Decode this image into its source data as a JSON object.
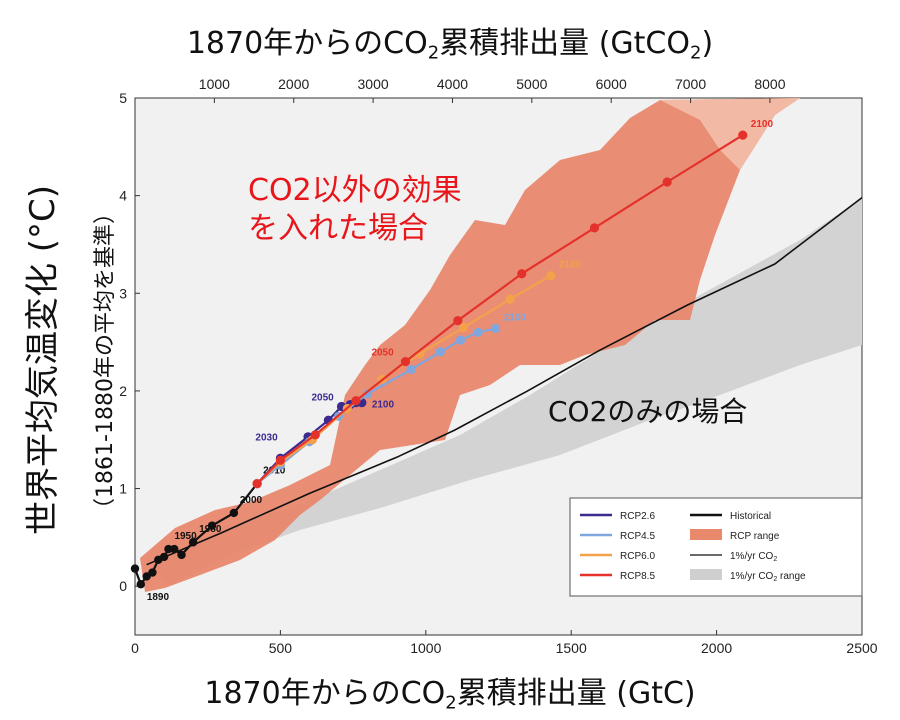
{
  "titles": {
    "top_axis_main": "1870年からのCO",
    "top_axis_sub": "2",
    "top_axis_tail": "累積排出量 (GtCO",
    "top_axis_sub2": "2",
    "top_axis_end": ")",
    "bottom_axis_main": "1870年からのCO",
    "bottom_axis_sub": "2",
    "bottom_axis_tail": "累積排出量 (GtC)",
    "y_axis_main": "世界平均気温変化 (°C)",
    "y_axis_sub": "（1861-1880年の平均を基準）"
  },
  "annotations": {
    "red_line1": "CO2以外の効果",
    "red_line2": "を入れた場合",
    "black": "CO2のみの場合"
  },
  "colors": {
    "rcp26": "#3b2a8f",
    "rcp45": "#7fa6dd",
    "rcp60": "#f5a04a",
    "rcp85": "#e5312c",
    "historical": "#111111",
    "rcp_range": "#e9896b",
    "pct_range": "#cfcfcf"
  },
  "chart_data": {
    "type": "line",
    "x_bottom": {
      "label": "1870年からのCO2累積排出量 (GtC)",
      "lim": [
        0,
        2500
      ],
      "ticks": [
        0,
        500,
        1000,
        1500,
        2000,
        2500
      ]
    },
    "x_top": {
      "label": "1870年からのCO2累積排出量 (GtCO2)",
      "ticks": [
        1000,
        2000,
        3000,
        4000,
        5000,
        6000,
        7000,
        8000
      ]
    },
    "y": {
      "label": "世界平均気温変化 (°C)",
      "lim": [
        -0.5,
        5
      ],
      "ticks": [
        0,
        1,
        2,
        3,
        4,
        5
      ]
    },
    "series": [
      {
        "name": "Historical",
        "color": "#111111",
        "points": [
          [
            0,
            0.18
          ],
          [
            20,
            0.02
          ],
          [
            40,
            0.1
          ],
          [
            60,
            0.14
          ],
          [
            80,
            0.27
          ],
          [
            100,
            0.3
          ],
          [
            115,
            0.38
          ],
          [
            135,
            0.38
          ],
          [
            160,
            0.32
          ],
          [
            200,
            0.45
          ],
          [
            265,
            0.62
          ],
          [
            340,
            0.75
          ],
          [
            420,
            1.05
          ]
        ],
        "labels": [
          [
            "1890",
            [
              20,
              0.02
            ]
          ],
          [
            "1950",
            [
              115,
              0.38
            ]
          ],
          [
            "1980",
            [
              200,
              0.45
            ]
          ],
          [
            "2000",
            [
              340,
              0.75
            ]
          ],
          [
            "2010",
            [
              420,
              1.05
            ]
          ]
        ]
      },
      {
        "name": "RCP2.6",
        "color": "#3b2a8f",
        "points": [
          [
            420,
            1.05
          ],
          [
            500,
            1.31
          ],
          [
            595,
            1.53
          ],
          [
            665,
            1.7
          ],
          [
            710,
            1.84
          ],
          [
            740,
            1.86
          ],
          [
            760,
            1.88
          ],
          [
            780,
            1.88
          ]
        ],
        "labels": [
          [
            "2030",
            [
              500,
              1.31
            ]
          ],
          [
            "2050",
            [
              710,
              1.84
            ]
          ],
          [
            "2100",
            [
              780,
              1.88
            ]
          ]
        ]
      },
      {
        "name": "RCP4.5",
        "color": "#7fa6dd",
        "points": [
          [
            420,
            1.05
          ],
          [
            500,
            1.24
          ],
          [
            600,
            1.48
          ],
          [
            700,
            1.74
          ],
          [
            800,
            1.97
          ],
          [
            950,
            2.22
          ],
          [
            1050,
            2.4
          ],
          [
            1120,
            2.52
          ],
          [
            1180,
            2.6
          ],
          [
            1240,
            2.64
          ]
        ],
        "labels": [
          [
            "2100",
            [
              1240,
              2.64
            ]
          ]
        ]
      },
      {
        "name": "RCP6.0",
        "color": "#f5a04a",
        "points": [
          [
            420,
            1.05
          ],
          [
            500,
            1.27
          ],
          [
            610,
            1.5
          ],
          [
            730,
            1.82
          ],
          [
            850,
            2.12
          ],
          [
            980,
            2.38
          ],
          [
            1130,
            2.65
          ],
          [
            1290,
            2.94
          ],
          [
            1430,
            3.18
          ]
        ],
        "labels": [
          [
            "2100",
            [
              1430,
              3.18
            ]
          ]
        ]
      },
      {
        "name": "RCP8.5",
        "color": "#e5312c",
        "points": [
          [
            420,
            1.05
          ],
          [
            500,
            1.29
          ],
          [
            620,
            1.55
          ],
          [
            760,
            1.9
          ],
          [
            930,
            2.3
          ],
          [
            1110,
            2.72
          ],
          [
            1330,
            3.2
          ],
          [
            1580,
            3.67
          ],
          [
            1830,
            4.14
          ],
          [
            2090,
            4.62
          ]
        ],
        "labels": [
          [
            "2050",
            [
              930,
              2.3
            ]
          ],
          [
            "2100",
            [
              2090,
              4.62
            ]
          ]
        ]
      },
      {
        "name": "1%/yr CO2",
        "color": "#111111",
        "points": [
          [
            40,
            0.22
          ],
          [
            300,
            0.55
          ],
          [
            600,
            0.95
          ],
          [
            900,
            1.32
          ],
          [
            1100,
            1.6
          ],
          [
            1350,
            2.0
          ],
          [
            1600,
            2.42
          ],
          [
            1900,
            2.88
          ],
          [
            2200,
            3.3
          ],
          [
            2500,
            3.98
          ]
        ]
      }
    ],
    "legend": {
      "position": "bottom-right",
      "entries": [
        "RCP2.6",
        "RCP4.5",
        "RCP6.0",
        "RCP8.5",
        "Historical",
        "RCP range",
        "1%/yr CO",
        "1%/yr CO range"
      ]
    }
  }
}
